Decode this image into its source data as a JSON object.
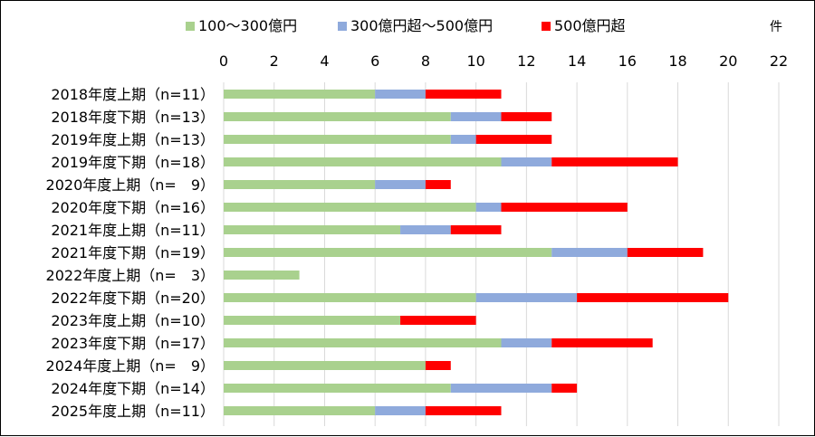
{
  "chart_data": {
    "type": "bar",
    "orientation": "horizontal",
    "stacked": true,
    "x_unit_label": "件",
    "xlim": [
      0,
      22
    ],
    "x_ticks": [
      0,
      2,
      4,
      6,
      8,
      10,
      12,
      14,
      16,
      18,
      20,
      22
    ],
    "grid": true,
    "legend_position": "top",
    "categories": [
      "2018年度上期（n=11）",
      "2018年度下期（n=13）",
      "2019年度上期（n=13）",
      "2019年度下期（n=18）",
      "2020年度上期（n=　9）",
      "2020年度下期（n=16）",
      "2021年度上期（n=11）",
      "2021年度下期（n=19）",
      "2022年度上期（n=　3）",
      "2022年度下期（n=20）",
      "2023年度上期（n=10）",
      "2023年度下期（n=17）",
      "2024年度上期（n=　9）",
      "2024年度下期（n=14）",
      "2025年度上期（n=11）"
    ],
    "series": [
      {
        "name": "100～300億円",
        "color": "#a9d18e",
        "values": [
          6,
          9,
          9,
          11,
          6,
          10,
          7,
          13,
          3,
          10,
          7,
          11,
          8,
          9,
          6
        ]
      },
      {
        "name": "300億円超～500億円",
        "color": "#8faadc",
        "values": [
          2,
          2,
          1,
          2,
          2,
          1,
          2,
          3,
          0,
          4,
          0,
          2,
          0,
          4,
          2
        ]
      },
      {
        "name": "500億円超",
        "color": "#ff0000",
        "values": [
          3,
          2,
          3,
          5,
          1,
          5,
          2,
          3,
          0,
          6,
          3,
          4,
          1,
          1,
          3
        ]
      }
    ]
  }
}
